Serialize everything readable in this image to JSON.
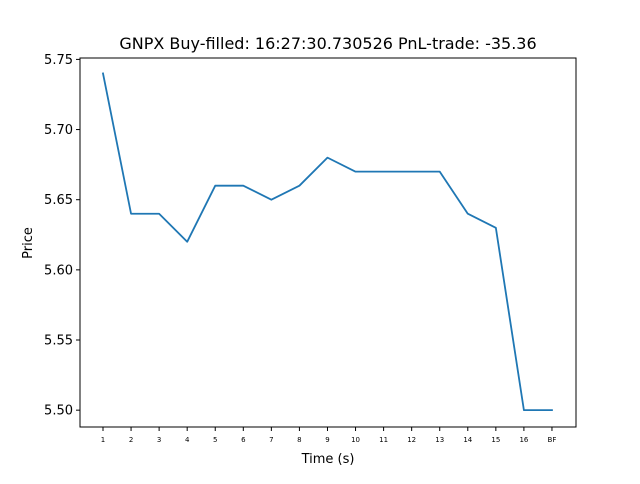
{
  "chart_data": {
    "type": "line",
    "title": "GNPX  Buy-filled:  16:27:30.730526  PnL-trade:  -35.36",
    "xlabel": "Time (s)",
    "ylabel": "Price",
    "categories": [
      "1",
      "2",
      "3",
      "4",
      "5",
      "6",
      "7",
      "8",
      "9",
      "10",
      "11",
      "12",
      "13",
      "14",
      "15",
      "16",
      "BF"
    ],
    "series": [
      {
        "values": [
          5.74,
          5.64,
          5.64,
          5.62,
          5.66,
          5.66,
          5.65,
          5.66,
          5.68,
          5.67,
          5.67,
          5.67,
          5.67,
          5.64,
          5.63,
          5.5,
          5.5
        ],
        "color": "#1f77b4"
      }
    ],
    "ylim": [
      5.488,
      5.751
    ],
    "yticks": [
      "5.50",
      "5.55",
      "5.60",
      "5.65",
      "5.70",
      "5.75"
    ],
    "grid": false,
    "legend": "none"
  }
}
